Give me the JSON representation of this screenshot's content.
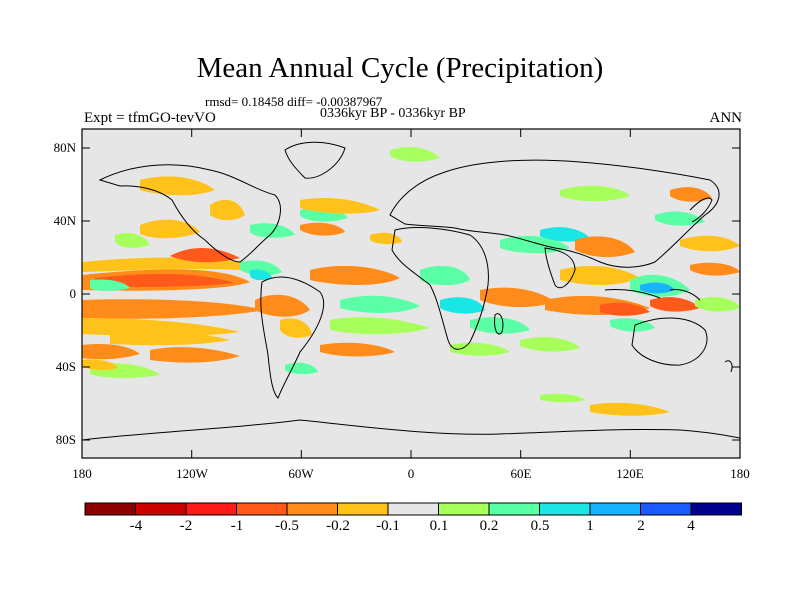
{
  "title": "Mean Annual Cycle (Precipitation)",
  "stats_line": "rmsd= 0.18458 diff= -0.00387967",
  "period_line": "0336kyr BP - 0336kyr BP",
  "experiment_label": "Expt = tfmGO-tevVO",
  "season_label": "ANN",
  "y_ticks": [
    "80N",
    "40N",
    "0",
    "40S",
    "80S"
  ],
  "x_ticks": [
    "180",
    "120W",
    "60W",
    "0",
    "60E",
    "120E",
    "180"
  ],
  "colorbar": {
    "labels": [
      "-4",
      "-2",
      "-1",
      "-0.5",
      "-0.2",
      "-0.1",
      "0.1",
      "0.2",
      "0.5",
      "1",
      "2",
      "4"
    ],
    "colors": [
      "#8b0000",
      "#cc0000",
      "#ff1a1a",
      "#ff5a1a",
      "#ff8c1a",
      "#ffc21a",
      "#e6e6e6",
      "#a6ff5a",
      "#5affa6",
      "#1ae6e6",
      "#1ab3ff",
      "#1a5aff",
      "#00008b"
    ]
  }
}
